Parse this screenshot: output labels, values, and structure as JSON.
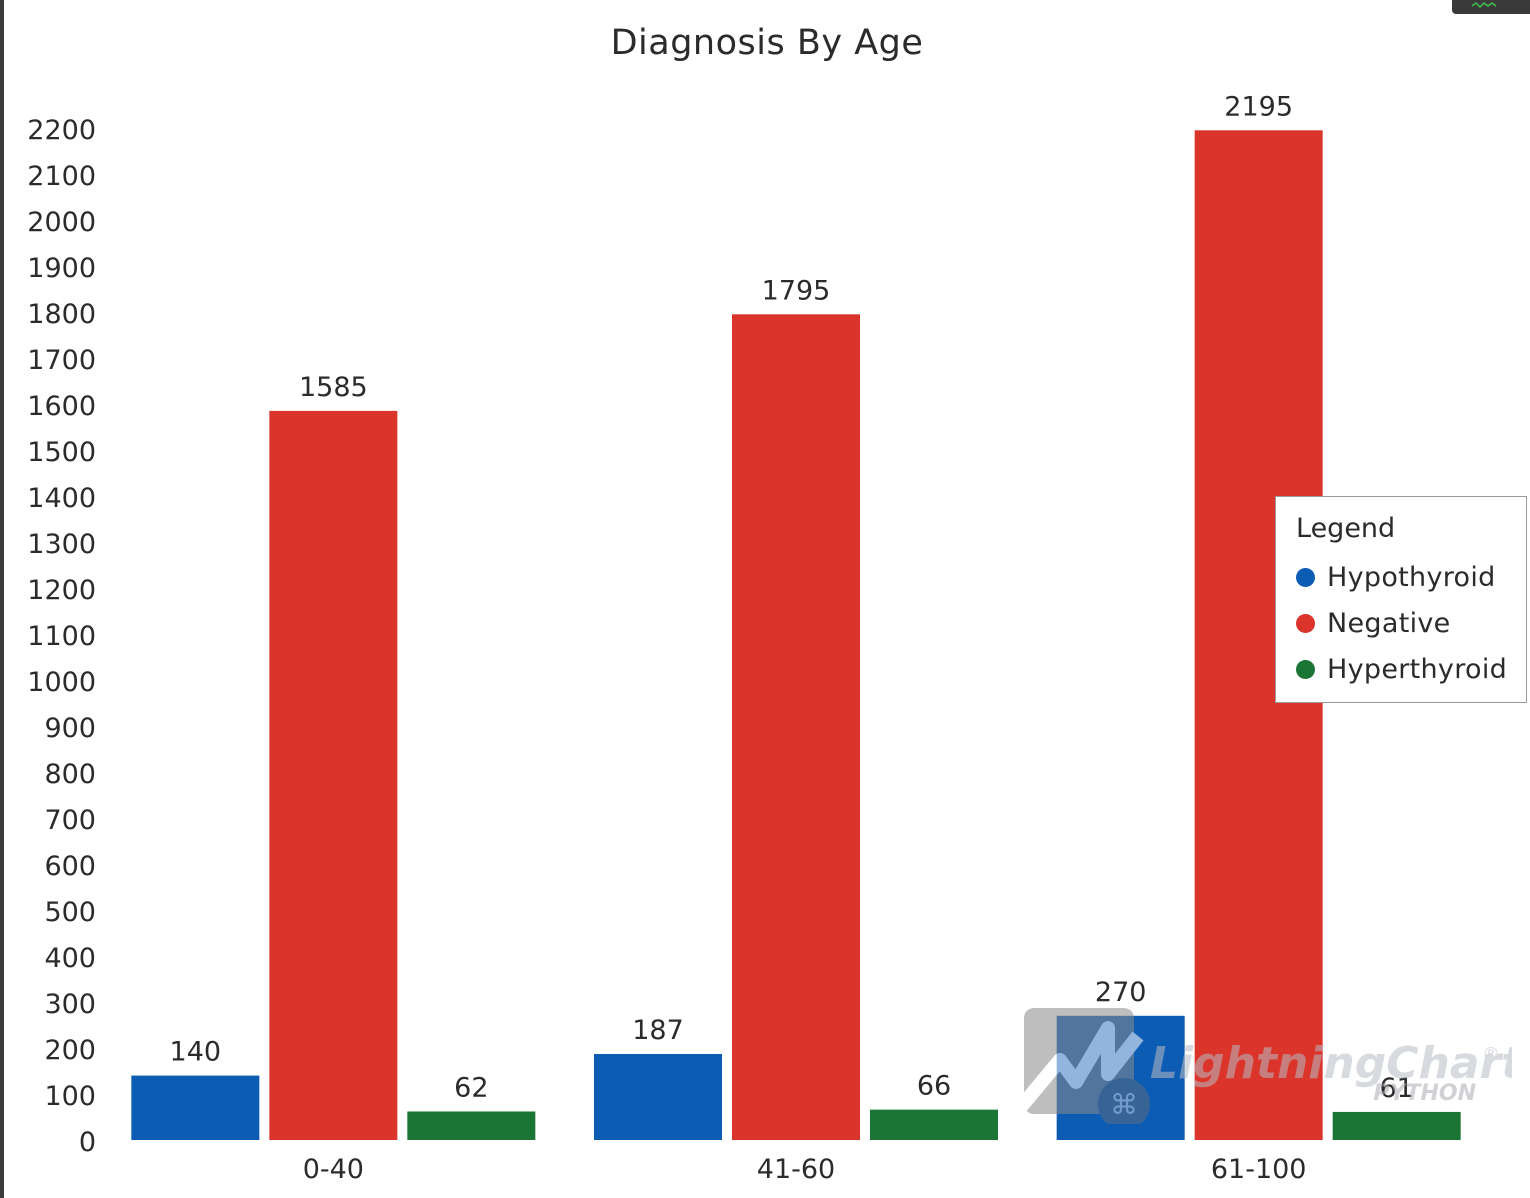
{
  "chart_data": {
    "type": "bar",
    "title": "Diagnosis By Age",
    "xlabel": "",
    "ylabel": "",
    "categories": [
      "0-40",
      "41-60",
      "61-100"
    ],
    "series": [
      {
        "name": "Hypothyroid",
        "color": "#0d5cb4",
        "values": [
          140,
          187,
          270
        ]
      },
      {
        "name": "Negative",
        "color": "#db342a",
        "values": [
          1585,
          1795,
          2195
        ]
      },
      {
        "name": "Hyperthyroid",
        "color": "#1b7534",
        "values": [
          62,
          66,
          61
        ]
      }
    ],
    "ylim": [
      0,
      2200
    ],
    "ytick_step": 100,
    "grid": false,
    "data_labels": true,
    "legend": {
      "title": "Legend",
      "placement": "right"
    }
  },
  "watermark": {
    "brand": "LightningChart",
    "sub": "PYTHON",
    "mark": "®"
  }
}
